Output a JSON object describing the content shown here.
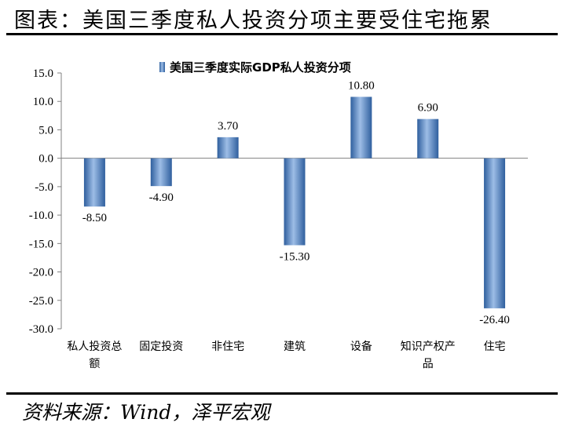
{
  "header": {
    "title": "图表：美国三季度私人投资分项主要受住宅拖累"
  },
  "footer": {
    "source": "资料来源：Wind，泽平宏观"
  },
  "chart_data": {
    "type": "bar",
    "categories": [
      [
        "私人投资总",
        "额"
      ],
      [
        "固定投资"
      ],
      [
        "非住宅"
      ],
      [
        "建筑"
      ],
      [
        "设备"
      ],
      [
        "知识产权产",
        "品"
      ],
      [
        "住宅"
      ]
    ],
    "series": [
      {
        "name": "美国三季度实际GDP私人投资分项",
        "values": [
          -8.5,
          -4.9,
          3.7,
          -15.3,
          10.8,
          6.9,
          -26.4
        ],
        "labels": [
          "-8.50",
          "-4.90",
          "3.70",
          "-15.30",
          "10.80",
          "6.90",
          "-26.40"
        ]
      }
    ],
    "ylim": [
      -30,
      15
    ],
    "yticks": [
      15,
      10,
      5,
      0,
      -5,
      -10,
      -15,
      -20,
      -25,
      -30
    ],
    "ytick_labels": [
      "15.0",
      "10.0",
      "5.0",
      "0.0",
      "-5.0",
      "-10.0",
      "-15.0",
      "-20.0",
      "-25.0",
      "-30.0"
    ],
    "legend_position": "top-center",
    "grid": false,
    "bar_color": "#4f81bd"
  }
}
